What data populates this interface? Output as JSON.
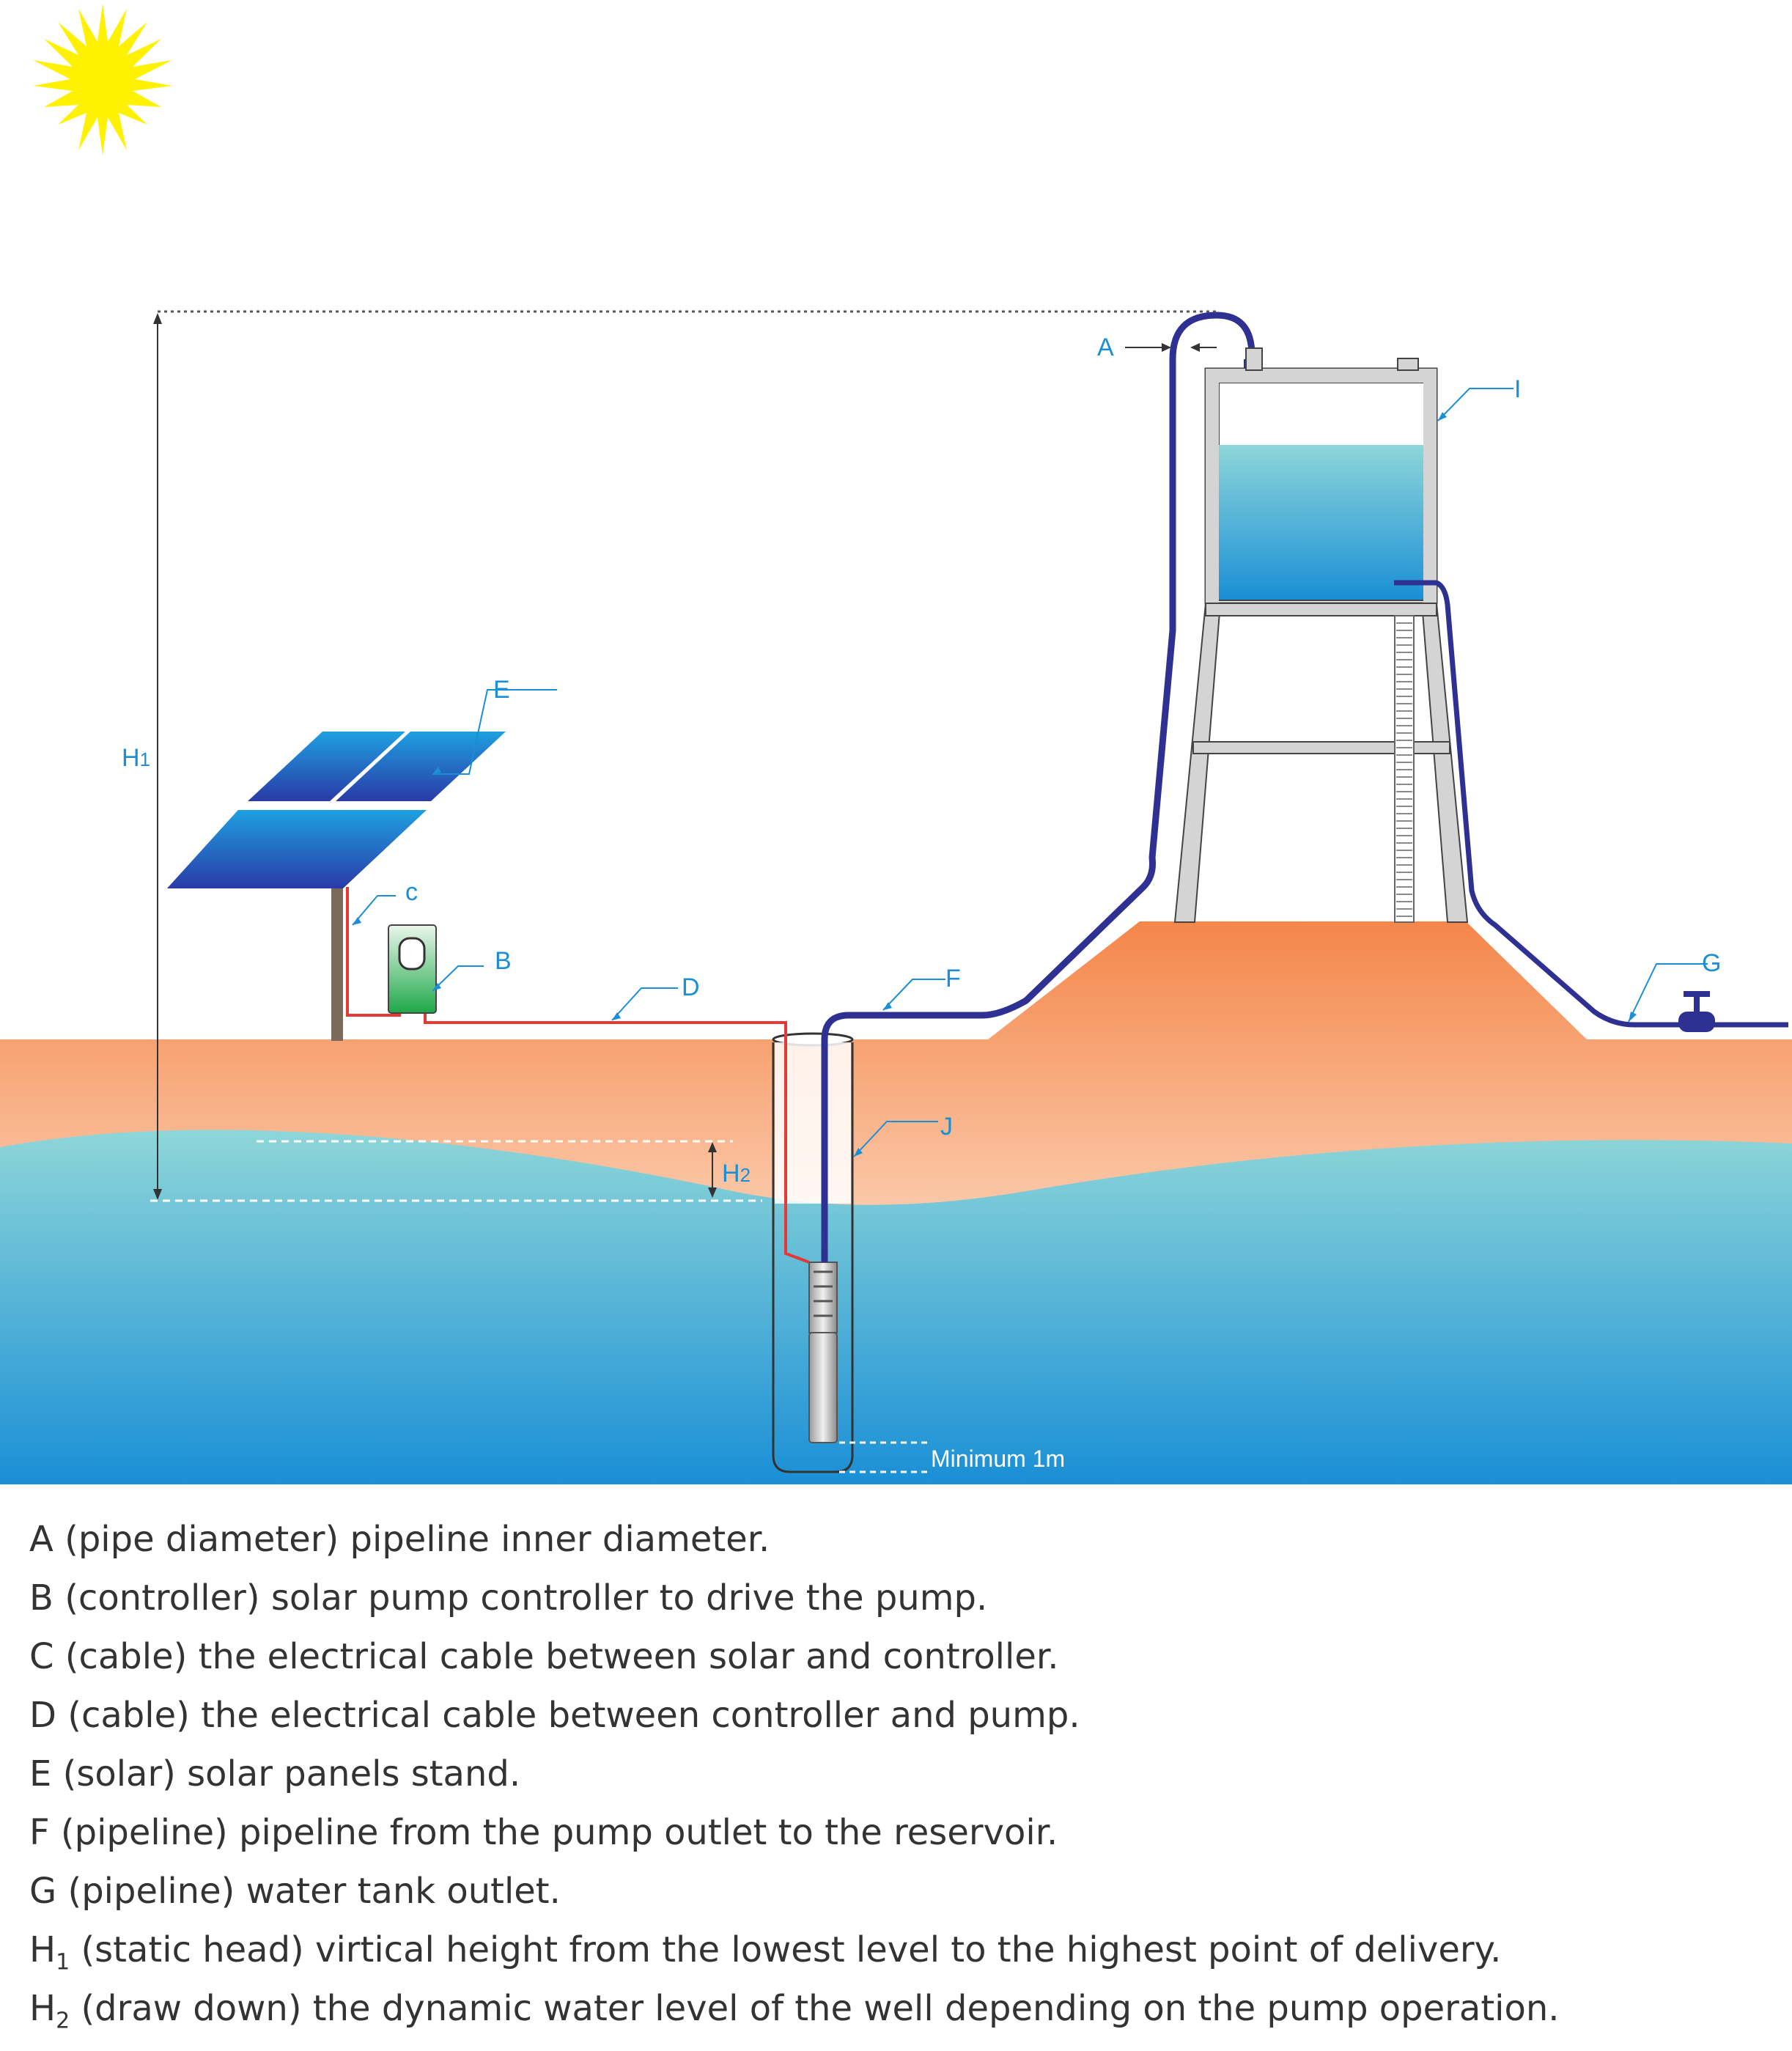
{
  "labels": {
    "A": "A",
    "B": "B",
    "C": "c",
    "D": "D",
    "E": "E",
    "F": "F",
    "G": "G",
    "H1_main": "H",
    "H1_sub": "1",
    "H2_main": "H",
    "H2_sub": "2",
    "I": "I",
    "J": "J",
    "minimum": "Minimum 1m"
  },
  "legend": [
    {
      "key": "A",
      "key_sub": "",
      "text": " (pipe diameter) pipeline inner diameter."
    },
    {
      "key": "B",
      "key_sub": "",
      "text": " (controller) solar pump controller to drive the pump."
    },
    {
      "key": "C",
      "key_sub": "",
      "text": " (cable) the electrical cable between solar and controller."
    },
    {
      "key": "D",
      "key_sub": "",
      "text": " (cable) the electrical cable between controller and pump."
    },
    {
      "key": "E",
      "key_sub": "",
      "text": " (solar) solar panels stand."
    },
    {
      "key": "F",
      "key_sub": "",
      "text": " (pipeline) pipeline from the pump outlet to the reservoir."
    },
    {
      "key": "G",
      "key_sub": "",
      "text": " (pipeline) water tank outlet."
    },
    {
      "key": "H",
      "key_sub": "1",
      "text": " (static head) virtical height from the lowest level to the highest point of delivery."
    },
    {
      "key": "H",
      "key_sub": "2",
      "text": " (draw down) the dynamic water level of the well depending on the pump operation."
    }
  ],
  "colors": {
    "sun": "#fff200",
    "ground_top": "#f4864a",
    "ground_bottom": "#fcd1b5",
    "water_top": "#8ed6d8",
    "water_bottom": "#1a8fd6",
    "pipe": "#2e3192",
    "cable": "#e53935",
    "label": "#1a8fd6",
    "tank_frame": "#c8c8c8",
    "panel": "#1a6fd0",
    "controller": "#1ea84a"
  }
}
